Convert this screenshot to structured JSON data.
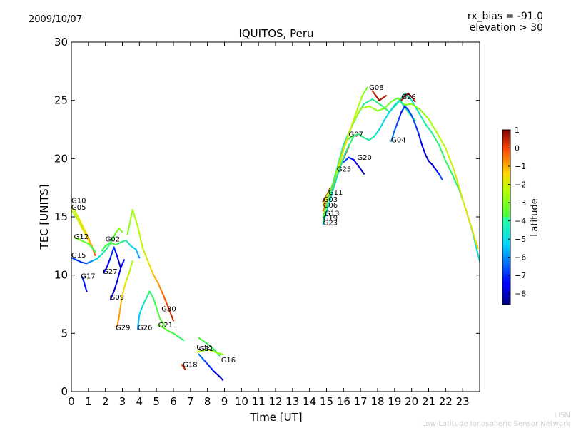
{
  "chart_data": {
    "type": "scatter",
    "title": "IQUITOS, Peru",
    "date": "2009/10/07",
    "info_line1": "rx_bias = -91.0",
    "info_line2": "elevation > 30",
    "xlabel": "Time [UT]",
    "ylabel": "TEC [UNITS]",
    "xlim": [
      0,
      24
    ],
    "ylim": [
      0,
      30
    ],
    "xticks": [
      "0",
      "1",
      "2",
      "3",
      "4",
      "5",
      "6",
      "7",
      "8",
      "9",
      "10",
      "11",
      "12",
      "13",
      "14",
      "15",
      "16",
      "17",
      "18",
      "19",
      "20",
      "21",
      "22",
      "23"
    ],
    "yticks": [
      "0",
      "5",
      "10",
      "15",
      "20",
      "25",
      "30"
    ],
    "colorbar": {
      "label": "Latitude",
      "min": -8.6,
      "max": 1.0,
      "ticks": [
        "1",
        "0",
        "−1",
        "−2",
        "−3",
        "−4",
        "−5",
        "−6",
        "−7",
        "−8"
      ]
    },
    "series": [
      {
        "name": "G10",
        "label_at": [
          0.0,
          16.2
        ],
        "x": [
          0.0,
          0.2,
          0.4,
          0.6,
          0.8,
          1.0,
          1.2,
          1.4
        ],
        "y": [
          15.8,
          15.5,
          15.0,
          14.4,
          13.8,
          13.2,
          12.5,
          11.7
        ],
        "lat": [
          -2.2,
          -2.0,
          -1.8,
          -1.6,
          -1.4,
          -1.0,
          -0.6,
          -0.2
        ]
      },
      {
        "name": "G05",
        "label_at": [
          0.0,
          15.6
        ],
        "x": [
          0.0,
          0.2,
          0.4,
          0.6,
          0.8,
          1.0,
          1.2
        ],
        "y": [
          15.5,
          15.2,
          14.7,
          14.1,
          13.6,
          13.0,
          12.4
        ],
        "lat": [
          -2.6,
          -2.4,
          -2.2,
          -2.0,
          -1.8,
          -1.4,
          -1.0
        ]
      },
      {
        "name": "G12",
        "label_at": [
          0.15,
          13.1
        ],
        "x": [
          0.2,
          0.4,
          0.7,
          1.0,
          1.2,
          1.4
        ],
        "y": [
          13.2,
          13.1,
          12.9,
          12.7,
          12.4,
          12.0
        ],
        "lat": [
          -3.0,
          -3.2,
          -3.4,
          -3.6,
          -3.8,
          -4.0
        ]
      },
      {
        "name": "G15",
        "label_at": [
          0.0,
          11.5
        ],
        "x": [
          0.0,
          0.3,
          0.6,
          0.9,
          1.2,
          1.5,
          1.8,
          2.1,
          2.4,
          2.6,
          2.8,
          3.0
        ],
        "y": [
          11.5,
          11.3,
          11.1,
          11.0,
          11.2,
          11.4,
          11.8,
          12.3,
          13.0,
          13.6,
          14.0,
          13.7
        ],
        "lat": [
          -6.5,
          -6.8,
          -7.0,
          -6.5,
          -6.0,
          -5.2,
          -4.8,
          -4.4,
          -4.0,
          -3.4,
          -2.8,
          -3.2
        ]
      },
      {
        "name": "G17",
        "label_at": [
          0.55,
          9.7
        ],
        "x": [
          0.6,
          0.7,
          0.8,
          0.9
        ],
        "y": [
          9.9,
          9.6,
          9.1,
          8.6
        ],
        "lat": [
          -6.8,
          -7.0,
          -7.2,
          -7.4
        ]
      },
      {
        "name": "G02",
        "label_at": [
          2.0,
          12.9
        ],
        "x": [
          1.8,
          2.0,
          2.3,
          2.6,
          2.9,
          3.2,
          3.5,
          3.8,
          4.0
        ],
        "y": [
          12.1,
          12.5,
          12.8,
          12.6,
          12.8,
          13.0,
          12.5,
          12.2,
          11.5
        ],
        "lat": [
          -4.2,
          -4.0,
          -3.8,
          -3.6,
          -4.2,
          -4.6,
          -5.0,
          -5.4,
          -5.8
        ]
      },
      {
        "name": "G27",
        "label_at": [
          1.85,
          10.1
        ],
        "x": [
          1.9,
          2.1,
          2.3,
          2.5,
          2.7,
          2.9
        ],
        "y": [
          10.2,
          10.7,
          11.5,
          12.4,
          11.6,
          10.6
        ],
        "lat": [
          -7.8,
          -7.6,
          -7.2,
          -6.8,
          -7.6,
          -8.2
        ]
      },
      {
        "name": "G09",
        "label_at": [
          2.25,
          7.9
        ],
        "x": [
          2.3,
          2.5,
          2.7,
          2.9,
          3.1
        ],
        "y": [
          7.9,
          8.6,
          9.5,
          10.6,
          11.3
        ],
        "lat": [
          -8.3,
          -8.0,
          -7.8,
          -7.6,
          -7.4
        ]
      },
      {
        "name": "G29",
        "label_at": [
          2.6,
          5.3
        ],
        "x": [
          2.7,
          2.8,
          2.9,
          3.0,
          3.2,
          3.4,
          3.6
        ],
        "y": [
          5.6,
          6.4,
          7.4,
          8.3,
          9.4,
          10.2,
          11.2
        ],
        "lat": [
          -0.6,
          -0.8,
          -1.0,
          -1.4,
          -1.8,
          -2.2,
          -2.6
        ]
      },
      {
        "name": "G26",
        "label_at": [
          3.9,
          5.3
        ],
        "x": [
          3.9,
          4.0,
          4.2,
          4.4,
          4.6,
          4.8,
          5.0,
          5.2,
          5.5
        ],
        "y": [
          5.4,
          6.6,
          7.4,
          8.0,
          8.6,
          8.1,
          7.2,
          6.3,
          5.6
        ],
        "lat": [
          -6.0,
          -5.4,
          -5.0,
          -4.6,
          -4.2,
          -4.0,
          -3.8,
          -3.6,
          -3.4
        ]
      },
      {
        "name": "G30",
        "label_at": [
          5.3,
          6.9
        ],
        "x": [
          3.3,
          3.6,
          3.9,
          4.2,
          4.5,
          4.8,
          5.1,
          5.4,
          5.7,
          6.0
        ],
        "y": [
          13.5,
          15.6,
          14.2,
          12.3,
          11.2,
          10.1,
          9.3,
          8.3,
          7.2,
          6.1
        ],
        "lat": [
          -3.0,
          -2.6,
          -2.4,
          -2.2,
          -1.8,
          -1.2,
          -0.8,
          -0.4,
          0.2,
          0.6
        ]
      },
      {
        "name": "G21",
        "label_at": [
          5.1,
          5.5
        ],
        "x": [
          5.1,
          5.4,
          5.7,
          6.0,
          6.3,
          6.6
        ],
        "y": [
          5.7,
          5.5,
          5.2,
          5.0,
          4.7,
          4.4
        ],
        "lat": [
          -3.2,
          -3.4,
          -3.6,
          -3.8,
          -4.0,
          -4.2
        ]
      },
      {
        "name": "G18",
        "label_at": [
          6.55,
          2.1
        ],
        "x": [
          6.5,
          6.6,
          6.7
        ],
        "y": [
          2.3,
          2.1,
          1.9
        ],
        "lat": [
          0.2,
          0.4,
          0.6
        ]
      },
      {
        "name": "G32",
        "label_at": [
          7.35,
          3.6
        ],
        "x": [
          7.5,
          7.8,
          8.1,
          8.4,
          8.7
        ],
        "y": [
          4.6,
          4.3,
          4.0,
          3.6,
          3.1
        ],
        "lat": [
          -3.6,
          -3.8,
          -4.0,
          -4.2,
          -4.4
        ]
      },
      {
        "name": "G31",
        "label_at": [
          7.5,
          3.5
        ],
        "x": [
          7.4,
          7.7,
          8.0,
          8.3,
          8.6,
          8.9
        ],
        "y": [
          3.4,
          3.5,
          3.6,
          3.5,
          3.3,
          3.2
        ],
        "lat": [
          -2.2,
          -2.4,
          -2.6,
          -2.6,
          -2.8,
          -2.8
        ]
      },
      {
        "name": "G16",
        "label_at": [
          8.8,
          2.5
        ],
        "x": [
          7.5,
          7.8,
          8.1,
          8.4,
          8.7,
          8.9
        ],
        "y": [
          3.2,
          2.7,
          2.2,
          1.7,
          1.3,
          1.0
        ],
        "lat": [
          -6.2,
          -6.6,
          -7.0,
          -7.4,
          -7.8,
          -8.2
        ]
      },
      {
        "name": "G11",
        "label_at": [
          15.1,
          16.9
        ],
        "x": [
          14.8,
          15.0,
          15.2
        ],
        "y": [
          16.3,
          16.8,
          17.4
        ],
        "lat": [
          0.6,
          0.8,
          1.0
        ]
      },
      {
        "name": "G03",
        "label_at": [
          14.8,
          16.3
        ],
        "x": [
          14.8,
          15.0,
          15.3,
          15.6,
          15.9
        ],
        "y": [
          16.0,
          16.7,
          17.6,
          18.6,
          19.6
        ],
        "lat": [
          -1.8,
          -2.0,
          -2.2,
          -2.4,
          -2.6
        ]
      },
      {
        "name": "G06",
        "label_at": [
          14.8,
          15.8
        ],
        "x": [
          14.8,
          15.1,
          15.4,
          15.7,
          16.0,
          16.3
        ],
        "y": [
          15.5,
          16.6,
          17.8,
          18.9,
          20.0,
          21.0
        ],
        "lat": [
          -0.6,
          -0.4,
          -0.2,
          0.0,
          0.2,
          0.4
        ]
      },
      {
        "name": "G13",
        "label_at": [
          14.9,
          15.1
        ],
        "x": [
          14.8,
          15.1,
          15.4,
          15.7,
          16.0,
          16.4,
          16.8,
          17.2,
          17.7,
          18.2,
          18.7,
          19.2,
          19.6,
          20.0,
          20.4,
          20.8,
          21.2,
          21.6,
          22.0,
          22.4,
          22.8,
          23.2,
          23.6,
          24.0
        ],
        "y": [
          15.0,
          16.5,
          18.0,
          19.6,
          21.2,
          22.5,
          23.7,
          24.7,
          25.1,
          24.6,
          24.0,
          24.8,
          25.6,
          25.0,
          24.0,
          23.0,
          22.2,
          21.2,
          19.8,
          18.6,
          17.3,
          15.6,
          13.6,
          11.2
        ],
        "lat": [
          -3.6,
          -3.8,
          -4.0,
          -4.2,
          -4.4,
          -4.6,
          -4.8,
          -4.6,
          -4.4,
          -4.2,
          -4.4,
          -4.6,
          -4.8,
          -5.0,
          -4.8,
          -4.6,
          -4.4,
          -4.2,
          -4.0,
          -4.2,
          -4.4,
          -4.6,
          -4.8,
          -5.0
        ]
      },
      {
        "name": "G19",
        "label_at": [
          14.8,
          14.7
        ],
        "x": [
          14.8,
          15.2,
          15.6,
          16.0,
          16.5,
          17.0,
          17.5,
          18.0,
          18.4,
          18.8,
          19.2,
          19.6,
          20.0,
          20.5,
          21.0,
          21.5,
          22.0,
          22.5,
          23.0,
          23.5,
          23.9
        ],
        "y": [
          14.6,
          16.4,
          18.5,
          20.8,
          22.9,
          24.3,
          24.5,
          24.1,
          24.3,
          24.9,
          25.2,
          24.6,
          24.7,
          24.2,
          23.4,
          22.2,
          20.9,
          19.0,
          16.5,
          14.2,
          12.3
        ],
        "lat": [
          -2.6,
          -2.4,
          -2.2,
          -2.0,
          -2.2,
          -2.4,
          -2.6,
          -2.8,
          -3.0,
          -3.2,
          -3.4,
          -3.2,
          -3.0,
          -2.8,
          -2.6,
          -2.4,
          -2.2,
          -2.0,
          -1.8,
          -1.6,
          -1.4
        ]
      },
      {
        "name": "G23",
        "label_at": [
          14.8,
          14.3
        ],
        "x": [
          14.8,
          15.1,
          15.4,
          15.7,
          16.0,
          16.3,
          16.6
        ],
        "y": [
          14.4,
          15.9,
          17.4,
          18.8,
          20.1,
          21.1,
          21.9
        ],
        "lat": [
          -5.4,
          -5.2,
          -5.0,
          -4.8,
          -4.6,
          -4.4,
          -4.2
        ]
      },
      {
        "name": "G25",
        "label_at": [
          15.6,
          18.9
        ],
        "x": [
          15.6,
          15.9,
          16.2,
          16.5,
          16.8,
          17.1,
          17.4
        ],
        "y": [
          18.8,
          20.3,
          21.6,
          22.9,
          24.2,
          25.4,
          26.1
        ],
        "lat": [
          -2.0,
          -1.8,
          -1.6,
          -2.0,
          -2.4,
          -2.8,
          -3.2
        ]
      },
      {
        "name": "G07",
        "label_at": [
          16.3,
          21.9
        ],
        "x": [
          16.3,
          16.6,
          16.9,
          17.2,
          17.5,
          17.8,
          18.1,
          18.4,
          18.7,
          19.0,
          19.3,
          19.6,
          19.9,
          20.2
        ],
        "y": [
          21.7,
          22.0,
          22.1,
          21.8,
          21.6,
          21.9,
          22.5,
          23.3,
          24.0,
          24.6,
          25.0,
          24.4,
          23.8,
          23.3
        ],
        "lat": [
          -3.8,
          -4.0,
          -4.2,
          -4.4,
          -4.6,
          -4.8,
          -5.0,
          -5.2,
          -5.2,
          -5.0,
          -4.8,
          -4.6,
          -4.4,
          -4.2
        ]
      },
      {
        "name": "G20",
        "label_at": [
          16.8,
          19.9
        ],
        "x": [
          16.0,
          16.3,
          16.6,
          16.9,
          17.2
        ],
        "y": [
          19.7,
          20.1,
          19.9,
          19.3,
          18.7
        ],
        "lat": [
          -6.6,
          -7.0,
          -7.4,
          -7.8,
          -8.2
        ]
      },
      {
        "name": "G08",
        "label_at": [
          17.5,
          25.9
        ],
        "x": [
          17.7,
          17.9,
          18.1,
          18.3,
          18.5
        ],
        "y": [
          25.8,
          25.4,
          25.0,
          25.2,
          25.4
        ],
        "lat": [
          0.4,
          0.6,
          0.8,
          0.6,
          0.4
        ]
      },
      {
        "name": "G04",
        "label_at": [
          18.8,
          21.4
        ],
        "x": [
          18.8,
          19.0,
          19.2,
          19.4,
          19.6,
          19.8,
          20.0,
          20.2,
          20.4,
          20.6,
          20.8,
          21.0,
          21.2,
          21.4,
          21.6,
          21.8
        ],
        "y": [
          21.5,
          22.4,
          23.2,
          24.0,
          24.5,
          24.2,
          23.7,
          23.0,
          22.2,
          21.2,
          20.4,
          19.8,
          19.5,
          19.1,
          18.7,
          18.2
        ],
        "lat": [
          -6.0,
          -6.4,
          -6.8,
          -7.2,
          -7.0,
          -6.8,
          -6.6,
          -6.8,
          -7.0,
          -7.4,
          -7.8,
          -8.2,
          -7.8,
          -7.4,
          -7.0,
          -6.6
        ]
      },
      {
        "name": "G28",
        "label_at": [
          19.4,
          25.1
        ],
        "x": [
          19.4,
          19.6,
          19.8,
          20.0,
          20.2
        ],
        "y": [
          25.0,
          25.4,
          25.6,
          25.3,
          24.9
        ],
        "lat": [
          0.6,
          0.8,
          1.0,
          0.8,
          0.6
        ]
      }
    ]
  },
  "footer": {
    "line1": "LISN",
    "line2": "Low-Latitude Ionospheric Sensor Network"
  }
}
